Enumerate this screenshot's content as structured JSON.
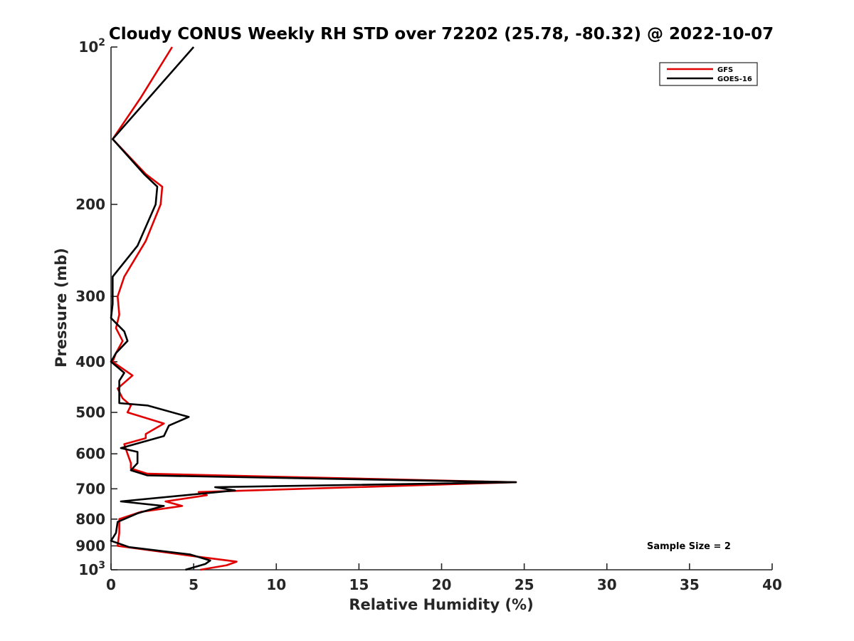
{
  "chart_data": {
    "type": "line",
    "title": "Cloudy CONUS Weekly RH STD over 72202 (25.78, -80.32) @ 2022-10-07",
    "xlabel": "Relative Humidity (%)",
    "ylabel": "Pressure (mb)",
    "xlim": [
      0,
      40
    ],
    "ylim": [
      100,
      1000
    ],
    "y_scale": "log",
    "y_reversed": true,
    "grid": false,
    "legend_position": "top-right",
    "x_ticks": [
      "0",
      "5",
      "10",
      "15",
      "20",
      "25",
      "30",
      "35",
      "40"
    ],
    "y_ticks": [
      {
        "value": 100,
        "base": "10",
        "exp": "2"
      },
      {
        "value": 200,
        "label": "200"
      },
      {
        "value": 300,
        "label": "300"
      },
      {
        "value": 400,
        "label": "400"
      },
      {
        "value": 500,
        "label": "500"
      },
      {
        "value": 600,
        "label": "600"
      },
      {
        "value": 700,
        "label": "700"
      },
      {
        "value": 800,
        "label": "800"
      },
      {
        "value": 900,
        "label": "900"
      },
      {
        "value": 1000,
        "base": "10",
        "exp": "3"
      }
    ],
    "annotation": "Sample Size = 2",
    "series": [
      {
        "name": "GFS",
        "color": "#e00000",
        "points": [
          [
            3.7,
            100
          ],
          [
            1.8,
            125
          ],
          [
            0.1,
            150
          ],
          [
            2.1,
            175
          ],
          [
            3.1,
            185
          ],
          [
            3.0,
            200
          ],
          [
            2.1,
            235
          ],
          [
            0.8,
            275
          ],
          [
            0.4,
            300
          ],
          [
            0.5,
            325
          ],
          [
            0.3,
            345
          ],
          [
            0.7,
            365
          ],
          [
            0.3,
            385
          ],
          [
            0.1,
            400
          ],
          [
            1.3,
            425
          ],
          [
            0.4,
            450
          ],
          [
            0.7,
            470
          ],
          [
            1.2,
            485
          ],
          [
            1.0,
            500
          ],
          [
            3.2,
            525
          ],
          [
            2.1,
            550
          ],
          [
            2.1,
            560
          ],
          [
            0.8,
            575
          ],
          [
            1.0,
            600
          ],
          [
            1.2,
            625
          ],
          [
            1.2,
            640
          ],
          [
            2.2,
            655
          ],
          [
            24.5,
            680
          ],
          [
            5.3,
            710
          ],
          [
            5.8,
            720
          ],
          [
            3.3,
            740
          ],
          [
            4.3,
            755
          ],
          [
            1.8,
            775
          ],
          [
            0.5,
            800
          ],
          [
            0.5,
            850
          ],
          [
            0.4,
            900
          ],
          [
            4.8,
            940
          ],
          [
            7.6,
            965
          ],
          [
            7.0,
            980
          ],
          [
            5.4,
            1000
          ]
        ]
      },
      {
        "name": "GOES-16",
        "color": "#000000",
        "points": [
          [
            5.0,
            100
          ],
          [
            0.1,
            150
          ],
          [
            2.0,
            175
          ],
          [
            2.8,
            185
          ],
          [
            2.7,
            200
          ],
          [
            1.6,
            240
          ],
          [
            0.1,
            275
          ],
          [
            0.1,
            310
          ],
          [
            0.0,
            330
          ],
          [
            0.8,
            350
          ],
          [
            1.0,
            365
          ],
          [
            0.3,
            385
          ],
          [
            0.0,
            400
          ],
          [
            0.8,
            420
          ],
          [
            0.5,
            435
          ],
          [
            0.5,
            450
          ],
          [
            0.5,
            480
          ],
          [
            2.2,
            485
          ],
          [
            4.7,
            510
          ],
          [
            3.5,
            530
          ],
          [
            3.2,
            555
          ],
          [
            0.6,
            585
          ],
          [
            1.6,
            595
          ],
          [
            1.6,
            625
          ],
          [
            1.2,
            645
          ],
          [
            2.2,
            660
          ],
          [
            24.5,
            680
          ],
          [
            6.3,
            695
          ],
          [
            7.5,
            705
          ],
          [
            0.6,
            740
          ],
          [
            3.2,
            755
          ],
          [
            2.5,
            765
          ],
          [
            1.6,
            780
          ],
          [
            0.4,
            810
          ],
          [
            0.3,
            850
          ],
          [
            0.0,
            880
          ],
          [
            1.1,
            905
          ],
          [
            4.8,
            935
          ],
          [
            6.0,
            960
          ],
          [
            5.7,
            975
          ],
          [
            4.5,
            1000
          ]
        ]
      }
    ]
  }
}
